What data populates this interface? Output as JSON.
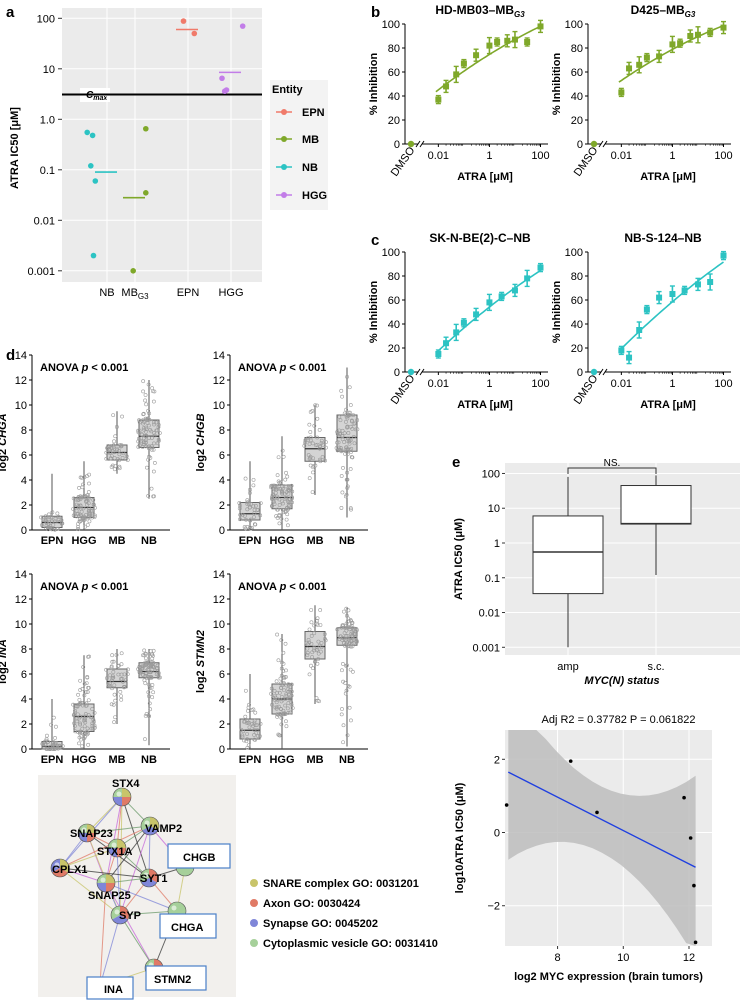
{
  "panel_labels": {
    "a": "a",
    "b": "b",
    "c": "c",
    "d": "d",
    "e": "e"
  },
  "panel_a": {
    "ylabel": "ATRA IC50 [μM]",
    "yticks": [
      "100",
      "10",
      "1.0",
      "0.1",
      "0.01",
      "0.001"
    ],
    "categories": [
      "NB",
      "MB",
      "EPN",
      "HGG"
    ],
    "mb_subscript": "G3",
    "cmax_label": "C",
    "cmax_sub": "max",
    "legend_title": "Entity",
    "legend": [
      {
        "label": "EPN",
        "color": "#f07a6a"
      },
      {
        "label": "MB",
        "color": "#7fa82a"
      },
      {
        "label": "NB",
        "color": "#2cc3c3"
      },
      {
        "label": "HGG",
        "color": "#c27de8"
      }
    ]
  },
  "chart_data": [
    {
      "type": "scatter",
      "title": "ATRA IC50 by entity",
      "ylabel": "ATRA IC50 [μM]",
      "yscale": "log",
      "ylim": [
        0.0006,
        160
      ],
      "cmax": 3.1,
      "series": [
        {
          "name": "NB",
          "values": [
            0.55,
            0.48,
            0.12,
            0.06,
            0.002
          ],
          "median": 0.09
        },
        {
          "name": "MB",
          "values": [
            0.65,
            0.035,
            0.001
          ],
          "median": 0.028
        },
        {
          "name": "EPN",
          "values": [
            88,
            50
          ],
          "median": 60
        },
        {
          "name": "HGG",
          "values": [
            70,
            6.5,
            3.8,
            3.6
          ],
          "median": 8.5
        }
      ]
    },
    {
      "type": "scatter",
      "title": "HD-MB03–MB",
      "title_sub": "G3",
      "xlabel": "ATRA [μM]",
      "ylabel": "% Inhibition",
      "ylim": [
        0,
        100
      ],
      "color": "#7fa82a",
      "x": [
        0.01,
        0.02,
        0.05,
        0.1,
        0.3,
        1,
        2,
        5,
        10,
        30,
        100
      ],
      "y": [
        37,
        48,
        58,
        67,
        74,
        82,
        85,
        86,
        87,
        85,
        98
      ],
      "dmso": 0
    },
    {
      "type": "scatter",
      "title": "D425–MB",
      "title_sub": "G3",
      "xlabel": "ATRA [μM]",
      "ylabel": "% Inhibition",
      "ylim": [
        0,
        100
      ],
      "color": "#7fa82a",
      "x": [
        0.01,
        0.02,
        0.05,
        0.1,
        0.3,
        1,
        2,
        5,
        10,
        30,
        100
      ],
      "y": [
        43,
        63,
        66,
        72,
        73,
        83,
        84,
        90,
        91,
        93,
        97
      ],
      "dmso": 0
    },
    {
      "type": "scatter",
      "title": "SK-N-BE(2)-C–NB",
      "xlabel": "ATRA [μM]",
      "ylabel": "% Inhibition",
      "ylim": [
        0,
        100
      ],
      "color": "#2cc3c3",
      "x": [
        0.01,
        0.02,
        0.05,
        0.1,
        0.3,
        1,
        3,
        10,
        30,
        100
      ],
      "y": [
        15,
        24,
        33,
        41,
        48,
        58,
        63,
        68,
        78,
        87
      ],
      "dmso": 0
    },
    {
      "type": "scatter",
      "title": "NB-S-124–NB",
      "xlabel": "ATRA [μM]",
      "ylabel": "% Inhibition",
      "ylim": [
        0,
        100
      ],
      "color": "#2cc3c3",
      "x": [
        0.01,
        0.02,
        0.05,
        0.1,
        0.3,
        1,
        3,
        10,
        30,
        100
      ],
      "y": [
        18,
        12,
        35,
        52,
        62,
        65,
        68,
        73,
        75,
        97
      ],
      "dmso": 0
    },
    {
      "type": "bar",
      "title": "log2 CHGA",
      "anova": "ANOVA p < 0.001",
      "categories": [
        "EPN",
        "HGG",
        "MB",
        "NB"
      ],
      "ylim": [
        0,
        14
      ],
      "boxes": [
        {
          "q1": 0.2,
          "med": 0.6,
          "q3": 1.1,
          "lo": 0,
          "hi": 4.5
        },
        {
          "q1": 1.0,
          "med": 1.8,
          "q3": 2.6,
          "lo": 0,
          "hi": 5.5
        },
        {
          "q1": 5.6,
          "med": 6.2,
          "q3": 6.8,
          "lo": 4.5,
          "hi": 9.5
        },
        {
          "q1": 6.6,
          "med": 7.5,
          "q3": 8.8,
          "lo": 2.5,
          "hi": 12.0
        }
      ]
    },
    {
      "type": "bar",
      "title": "log2 CHGB",
      "anova": "ANOVA p < 0.001",
      "categories": [
        "EPN",
        "HGG",
        "MB",
        "NB"
      ],
      "ylim": [
        0,
        14
      ],
      "boxes": [
        {
          "q1": 0.8,
          "med": 1.3,
          "q3": 2.2,
          "lo": 0,
          "hi": 5.5
        },
        {
          "q1": 1.7,
          "med": 2.6,
          "q3": 3.6,
          "lo": 0,
          "hi": 7.5
        },
        {
          "q1": 5.5,
          "med": 6.5,
          "q3": 7.4,
          "lo": 2.8,
          "hi": 10.0
        },
        {
          "q1": 6.3,
          "med": 7.4,
          "q3": 9.2,
          "lo": 1.0,
          "hi": 13.0
        }
      ]
    },
    {
      "type": "bar",
      "title": "log2 INA",
      "anova": "ANOVA p < 0.001",
      "categories": [
        "EPN",
        "HGG",
        "MB",
        "NB"
      ],
      "ylim": [
        0,
        14
      ],
      "boxes": [
        {
          "q1": 0.0,
          "med": 0.2,
          "q3": 0.6,
          "lo": 0,
          "hi": 4.0
        },
        {
          "q1": 1.4,
          "med": 2.6,
          "q3": 3.6,
          "lo": 0,
          "hi": 7.5
        },
        {
          "q1": 4.9,
          "med": 5.4,
          "q3": 6.4,
          "lo": 2.0,
          "hi": 8.0
        },
        {
          "q1": 5.7,
          "med": 6.2,
          "q3": 6.9,
          "lo": 0.3,
          "hi": 8.0
        }
      ]
    },
    {
      "type": "bar",
      "title": "log2 STMN2",
      "anova": "ANOVA p < 0.001",
      "categories": [
        "EPN",
        "HGG",
        "MB",
        "NB"
      ],
      "ylim": [
        0,
        14
      ],
      "boxes": [
        {
          "q1": 0.8,
          "med": 1.5,
          "q3": 2.4,
          "lo": 0,
          "hi": 6.0
        },
        {
          "q1": 2.8,
          "med": 4.0,
          "q3": 5.2,
          "lo": 0,
          "hi": 9.2
        },
        {
          "q1": 7.2,
          "med": 8.2,
          "q3": 9.4,
          "lo": 3.6,
          "hi": 11.5
        },
        {
          "q1": 8.3,
          "med": 8.9,
          "q3": 9.7,
          "lo": 0.2,
          "hi": 11.3
        }
      ]
    },
    {
      "type": "bar",
      "title": "ATRA IC50 by MYC(N) status",
      "xlabel": "MYC(N) status",
      "ylabel": "ATRA IC50 (μM)",
      "yscale": "log",
      "ylim": [
        0.0006,
        200
      ],
      "significance": "NS.",
      "categories": [
        "amp",
        "s.c."
      ],
      "boxes": [
        {
          "q1": 0.035,
          "med": 0.55,
          "q3": 6.0,
          "lo": 0.001,
          "hi": 80
        },
        {
          "q1": 3.5,
          "med": 3.6,
          "q3": 45,
          "lo": 0.12,
          "hi": 88
        }
      ]
    },
    {
      "type": "scatter",
      "title": "Adj R2 = 0.37782 P = 0.061822",
      "xlabel": "log2 MYC expression (brain tumors)",
      "ylabel": "log10ATRA IC50 (μM)",
      "xlim": [
        6.4,
        12.7
      ],
      "ylim": [
        -3.1,
        2.8
      ],
      "x": [
        6.45,
        8.4,
        9.2,
        11.85,
        12.05,
        12.15,
        12.2
      ],
      "y": [
        0.75,
        1.95,
        0.55,
        0.95,
        -0.15,
        -1.45,
        -3.0
      ],
      "fit": {
        "x0": 6.5,
        "y0": 1.65,
        "x1": 12.2,
        "y1": -0.95
      }
    }
  ],
  "panel_b": {
    "dmso": "DMSO",
    "xticks": [
      "0.01",
      "1",
      "100"
    ],
    "yticks": [
      "0",
      "20",
      "40",
      "60",
      "80",
      "100"
    ]
  },
  "panel_e": {
    "yticks_box": [
      "100",
      "10",
      "1",
      "0.1",
      "0.01",
      "0.001"
    ],
    "yticks_scatter": [
      "2",
      "0",
      "−2"
    ],
    "xticks_scatter": [
      "8",
      "10",
      "12"
    ]
  },
  "network": {
    "nodes": [
      "STX4",
      "SNAP23",
      "VAMP2",
      "STX1A",
      "CHGB",
      "CPLX1",
      "SYT1",
      "SNAP25",
      "SYP",
      "CHGA",
      "STMN2",
      "INA"
    ],
    "legend": [
      {
        "label": "SNARE complex GO: 0031201",
        "color": "#c8c46a"
      },
      {
        "label": "Axon GO: 0030424",
        "color": "#e07a66"
      },
      {
        "label": "Synapse GO: 0045202",
        "color": "#7f86d8"
      },
      {
        "label": "Cytoplasmic vesicle GO: 0031410",
        "color": "#a6d09a"
      }
    ]
  }
}
